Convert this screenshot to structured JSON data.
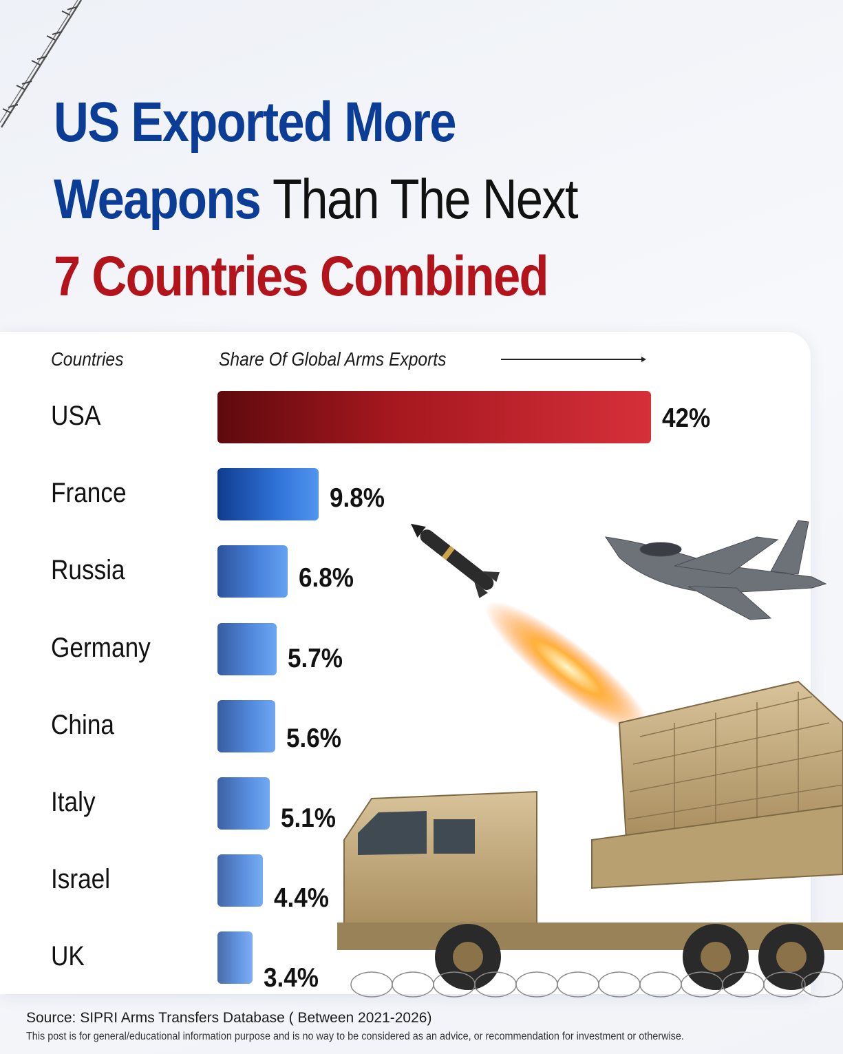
{
  "title": {
    "line1": "US Exported More",
    "line2_highlight": "Weapons",
    "line2_rest": "Than The Next",
    "line3": "7 Countries Combined"
  },
  "chart_data": {
    "type": "bar",
    "orientation": "horizontal",
    "category_header": "Countries",
    "value_header": "Share Of Global Arms Exports",
    "categories": [
      "USA",
      "France",
      "Russia",
      "Germany",
      "China",
      "Italy",
      "Israel",
      "UK"
    ],
    "values": [
      42,
      9.8,
      6.8,
      5.7,
      5.6,
      5.1,
      4.4,
      3.4
    ],
    "labels": [
      "42%",
      "9.8%",
      "6.8%",
      "5.7%",
      "5.6%",
      "5.1%",
      "4.4%",
      "3.4%"
    ],
    "unit": "%",
    "highlight_category": "USA",
    "colors": {
      "highlight": "#b3141c",
      "others": "#2a6ad4"
    }
  },
  "footer": {
    "source": "Source: SIPRI Arms Transfers Database ( Between 2021-2026)",
    "disclaimer": "This post is for general/educational information purpose and is no way to be considered as an advice, or recommendation for investment or otherwise."
  },
  "colors": {
    "title_blue": "#0b3d96",
    "title_red": "#b3141c"
  }
}
